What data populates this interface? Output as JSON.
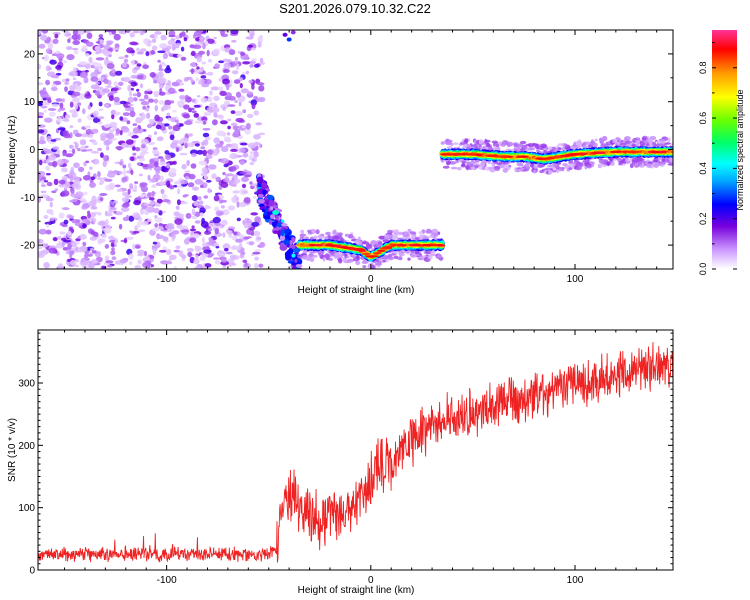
{
  "title": "S201.2026.079.10.32.C22",
  "chart_data": [
    {
      "type": "heatmap",
      "xlabel": "Height of straight line (km)",
      "ylabel": "Frequency (Hz)",
      "xlim": [
        -163,
        148
      ],
      "ylim": [
        -25,
        25
      ],
      "xticks": [
        -100,
        0,
        100
      ],
      "yticks": [
        -20,
        -10,
        0,
        10,
        20
      ],
      "colorbar": {
        "label": "Normalized spectral amplitude",
        "range": [
          0,
          0.95
        ],
        "ticks": [
          "0.0",
          "0.2",
          "0.4",
          "0.6",
          "0.8"
        ]
      },
      "regions": [
        {
          "name": "scattered noise",
          "x_range": [
            -163,
            -53
          ],
          "y_range": [
            -25,
            25
          ],
          "amplitude": 0.12
        },
        {
          "name": "transition burst",
          "x_range": [
            -55,
            -35
          ],
          "y_range": [
            -25,
            -5
          ],
          "amplitude": 0.3
        },
        {
          "name": "lower line",
          "x": [
            -35,
            -20,
            -5,
            0,
            10,
            25,
            35
          ],
          "y": [
            -20,
            -20,
            -21,
            -22.5,
            -20,
            -20,
            -20
          ],
          "amplitude": 0.85
        },
        {
          "name": "upper line",
          "x": [
            35,
            50,
            65,
            75,
            85,
            100,
            120,
            148
          ],
          "y": [
            -1,
            -1,
            -1.5,
            -1.5,
            -2,
            -1,
            -0.5,
            -0.5
          ],
          "amplitude": 0.9
        }
      ]
    },
    {
      "type": "line",
      "xlabel": "Height of straight line (km)",
      "ylabel": "SNR (10 * v/v)",
      "xlim": [
        -163,
        148
      ],
      "ylim": [
        0,
        385
      ],
      "xticks": [
        -100,
        0,
        100
      ],
      "yticks": [
        0,
        100,
        200,
        300
      ],
      "series": [
        {
          "name": "SNR",
          "color": "#ee2222",
          "x": [
            -163,
            -140,
            -110,
            -80,
            -55,
            -46,
            -44,
            -40,
            -35,
            -30,
            -25,
            -20,
            -15,
            -10,
            -5,
            0,
            5,
            10,
            20,
            30,
            40,
            50,
            60,
            80,
            100,
            120,
            140,
            148
          ],
          "y": [
            25,
            25,
            25,
            25,
            25,
            30,
            90,
            120,
            100,
            90,
            80,
            90,
            95,
            105,
            120,
            145,
            170,
            180,
            205,
            230,
            245,
            255,
            265,
            280,
            300,
            315,
            325,
            330
          ]
        }
      ]
    }
  ]
}
